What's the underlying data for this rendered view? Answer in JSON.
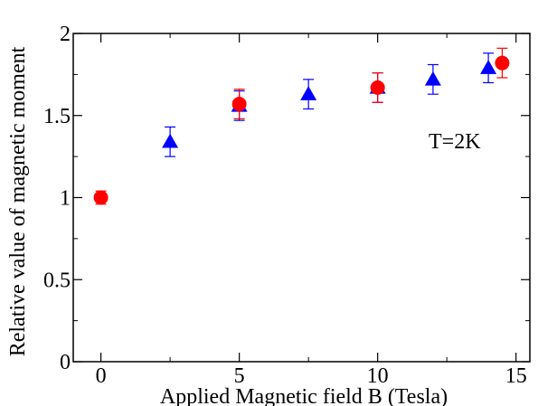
{
  "chart_data": {
    "type": "scatter",
    "title": "",
    "xlabel": "Applied Magnetic field B (Tesla)",
    "ylabel": "Relative value of  magnetic moment",
    "xlim": [
      -1,
      15.5
    ],
    "ylim": [
      0,
      2
    ],
    "x_ticks": [
      0,
      5,
      10,
      15
    ],
    "x_tick_labels": [
      "0",
      "5",
      "10",
      "15"
    ],
    "y_ticks": [
      0,
      0.5,
      1,
      1.5,
      2
    ],
    "y_tick_labels": [
      "0",
      "0.5",
      "1",
      "1.5",
      "2"
    ],
    "x_minor_step": 2.5,
    "y_minor_step": 0.25,
    "grid": false,
    "legend": "none",
    "annotation": "T=2K",
    "series": [
      {
        "marker": "circle",
        "color": "#ff0000",
        "points": [
          {
            "x": 0,
            "y": 1.0,
            "err": 0.04
          },
          {
            "x": 5,
            "y": 1.57,
            "err": 0.09
          },
          {
            "x": 10,
            "y": 1.67,
            "err": 0.09
          },
          {
            "x": 14.5,
            "y": 1.82,
            "err": 0.09
          }
        ]
      },
      {
        "marker": "triangle",
        "color": "#0000ff",
        "points": [
          {
            "x": 2.5,
            "y": 1.34,
            "err": 0.09
          },
          {
            "x": 5,
            "y": 1.56,
            "err": 0.09
          },
          {
            "x": 7.5,
            "y": 1.63,
            "err": 0.09
          },
          {
            "x": 10,
            "y": 1.67,
            "err": 0.09
          },
          {
            "x": 12,
            "y": 1.72,
            "err": 0.09
          },
          {
            "x": 14,
            "y": 1.79,
            "err": 0.09
          }
        ]
      }
    ]
  }
}
